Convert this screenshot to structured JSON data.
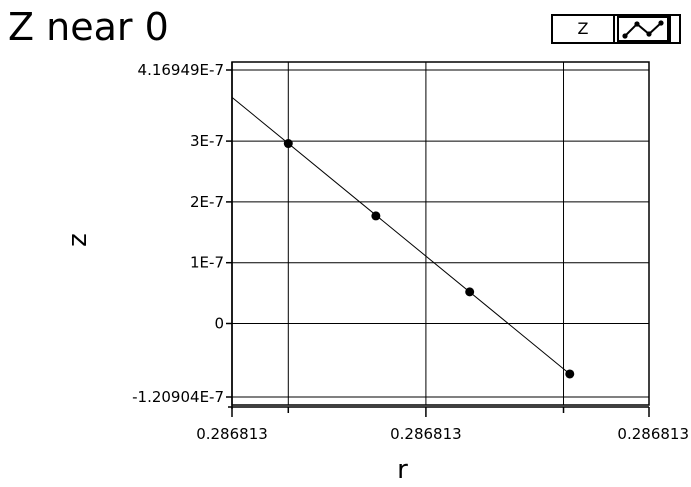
{
  "title": "Z near 0",
  "legend": {
    "label": "Z",
    "icon": "line-with-points-icon"
  },
  "chart_data": {
    "type": "line",
    "title": "Z near 0",
    "xlabel": "r",
    "ylabel": "z",
    "xlim": [
      0,
      1
    ],
    "ylim": [
      -1.20904e-07,
      4.16949e-07
    ],
    "x_tick_labels": [
      "0.286813",
      "0.286813",
      "0.286813"
    ],
    "y_ticks": [
      {
        "value": 4.16949e-07,
        "label": "4.16949E-7"
      },
      {
        "value": 3e-07,
        "label": "3E-7"
      },
      {
        "value": 2e-07,
        "label": "2E-7"
      },
      {
        "value": 1e-07,
        "label": "1E-7"
      },
      {
        "value": 0,
        "label": "0"
      },
      {
        "value": -1.20904e-07,
        "label": "-1.20904E-7"
      }
    ],
    "grid": true,
    "series": [
      {
        "markers": [
          {
            "x": 0.135,
            "y": 2.96e-07
          },
          {
            "x": 0.345,
            "y": 1.77e-07
          },
          {
            "x": 0.57,
            "y": 5.2e-08
          },
          {
            "x": 0.81,
            "y": -8.3e-08
          }
        ],
        "fit_line": [
          {
            "x": 0.0,
            "y": 3.72e-07
          },
          {
            "x": 0.81,
            "y": -8.3e-08
          }
        ]
      }
    ]
  }
}
